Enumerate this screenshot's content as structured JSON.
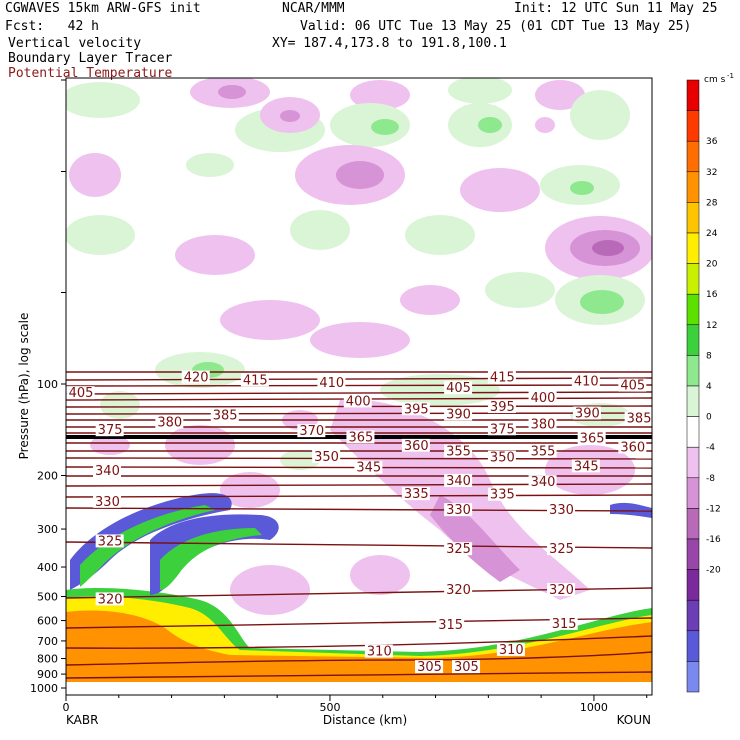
{
  "header": {
    "left_line1": "CGWAVES 15km ARW-GFS init",
    "left_line2": "Fcst:   42 h",
    "center_line1": "NCAR/MMM",
    "init": "Init: 12 UTC Sun 11 May 25",
    "valid": "Valid: 06 UTC Tue 13 May 25 (01 CDT Tue 13 May 25)",
    "xy": "XY= 187.4,173.8 to 191.8,100.1",
    "field1": "Vertical velocity",
    "field2": "Boundary Layer Tracer",
    "field3": "Potential Temperature"
  },
  "chart_data": {
    "type": "heatmap",
    "title": "Vertical velocity / Boundary Layer Tracer / Potential Temperature",
    "xlabel": "Distance (km)",
    "ylabel": "Pressure (hPa), log scale",
    "xlim": [
      0,
      1110
    ],
    "x_ticks": [
      0,
      500,
      1000
    ],
    "x_endpoints": {
      "left": "KABR",
      "right": "KOUN"
    },
    "y_ticks": [
      100,
      200,
      300,
      400,
      500,
      600,
      700,
      800,
      900,
      1000
    ],
    "y_scale": "log",
    "colorbar": {
      "units": "cm s",
      "units_exponent": "-1",
      "levels": [
        36,
        32,
        28,
        24,
        20,
        16,
        12,
        8,
        4,
        0,
        -4,
        -8,
        -12,
        -16,
        -20
      ],
      "colors": [
        "#e80000",
        "#ff3a00",
        "#ff6e00",
        "#ff9200",
        "#ffc400",
        "#ffee00",
        "#c8f000",
        "#5ce000",
        "#3cd03c",
        "#8ee88e",
        "#d9f5d6",
        "#ffffff",
        "#efc1ef",
        "#d693d6",
        "#b86ab8",
        "#9846a8",
        "#7a2a9a",
        "#6b3eb5",
        "#5a5ad8",
        "#7b89ee"
      ]
    },
    "theta_labels": [
      {
        "label": "420",
        "x": 223,
        "p": 96
      },
      {
        "label": "415",
        "x": 335,
        "p": 98
      },
      {
        "label": "415",
        "x": 803,
        "p": 96
      },
      {
        "label": "410",
        "x": 480,
        "p": 100
      },
      {
        "label": "410",
        "x": 962,
        "p": 99
      },
      {
        "label": "405",
        "x": 5,
        "p": 108
      },
      {
        "label": "405",
        "x": 720,
        "p": 104
      },
      {
        "label": "405",
        "x": 1050,
        "p": 102
      },
      {
        "label": "400",
        "x": 530,
        "p": 115
      },
      {
        "label": "400",
        "x": 880,
        "p": 112
      },
      {
        "label": "395",
        "x": 640,
        "p": 122
      },
      {
        "label": "395",
        "x": 803,
        "p": 120
      },
      {
        "label": "390",
        "x": 720,
        "p": 127
      },
      {
        "label": "390",
        "x": 964,
        "p": 126
      },
      {
        "label": "385",
        "x": 278,
        "p": 128
      },
      {
        "label": "385",
        "x": 1062,
        "p": 131
      },
      {
        "label": "380",
        "x": 173,
        "p": 135
      },
      {
        "label": "380",
        "x": 880,
        "p": 137
      },
      {
        "label": "375",
        "x": 60,
        "p": 143
      },
      {
        "label": "375",
        "x": 803,
        "p": 142
      },
      {
        "label": "370",
        "x": 442,
        "p": 144
      },
      {
        "label": "365",
        "x": 535,
        "p": 151
      },
      {
        "label": "365",
        "x": 973,
        "p": 152
      },
      {
        "label": "360",
        "x": 640,
        "p": 161
      },
      {
        "label": "360",
        "x": 1050,
        "p": 163
      },
      {
        "label": "355",
        "x": 720,
        "p": 168
      },
      {
        "label": "355",
        "x": 880,
        "p": 168
      },
      {
        "label": "350",
        "x": 470,
        "p": 175
      },
      {
        "label": "350",
        "x": 803,
        "p": 176
      },
      {
        "label": "345",
        "x": 550,
        "p": 190
      },
      {
        "label": "345",
        "x": 962,
        "p": 188
      },
      {
        "label": "340",
        "x": 55,
        "p": 195
      },
      {
        "label": "340",
        "x": 720,
        "p": 210
      },
      {
        "label": "340",
        "x": 880,
        "p": 212
      },
      {
        "label": "335",
        "x": 640,
        "p": 232
      },
      {
        "label": "335",
        "x": 803,
        "p": 233
      },
      {
        "label": "330",
        "x": 55,
        "p": 246
      },
      {
        "label": "330",
        "x": 720,
        "p": 262
      },
      {
        "label": "330",
        "x": 915,
        "p": 262
      },
      {
        "label": "325",
        "x": 60,
        "p": 332
      },
      {
        "label": "325",
        "x": 720,
        "p": 352
      },
      {
        "label": "325",
        "x": 915,
        "p": 352
      },
      {
        "label": "320",
        "x": 60,
        "p": 515
      },
      {
        "label": "320",
        "x": 720,
        "p": 480
      },
      {
        "label": "320",
        "x": 915,
        "p": 480
      },
      {
        "label": "315",
        "x": 705,
        "p": 625
      },
      {
        "label": "315",
        "x": 920,
        "p": 620
      },
      {
        "label": "310",
        "x": 570,
        "p": 765
      },
      {
        "label": "310",
        "x": 820,
        "p": 755
      },
      {
        "label": "305",
        "x": 665,
        "p": 860
      },
      {
        "label": "305",
        "x": 735,
        "p": 860
      }
    ]
  }
}
